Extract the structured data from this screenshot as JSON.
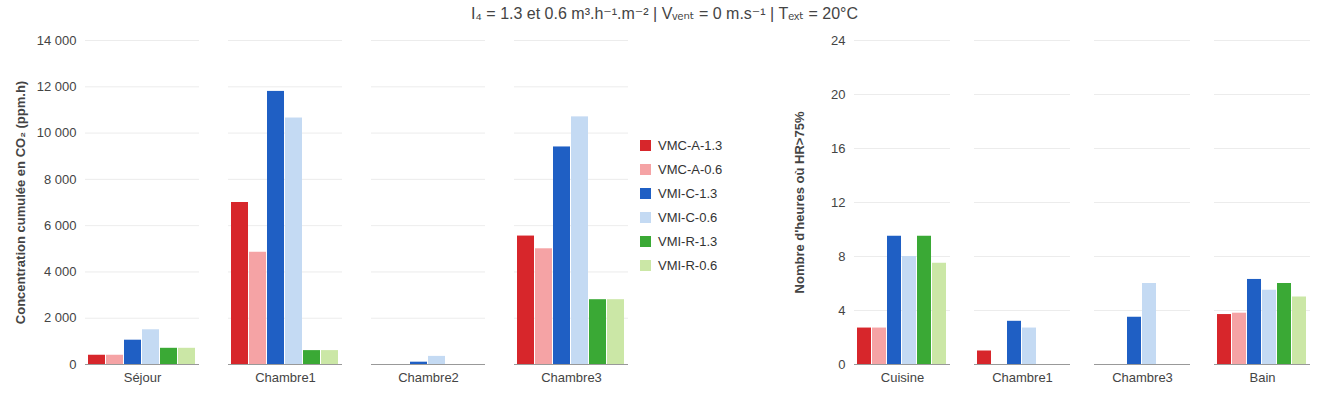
{
  "title": "I₄ = 1.3 et 0.6 m³.h⁻¹.m⁻² | Vᵥₑₙₜ = 0 m.s⁻¹ | Tₑₓₜ = 20°C",
  "chart_data": [
    {
      "type": "bar",
      "y_label": "Concentration cumulée en CO₂ (ppm.h)",
      "categories": [
        "Séjour",
        "Chambre1",
        "Chambre2",
        "Chambre3"
      ],
      "series": [
        {
          "name": "VMC-A-1.3",
          "color": "#d7262b",
          "values": [
            400,
            7000,
            0,
            5550
          ]
        },
        {
          "name": "VMC-A-0.6",
          "color": "#f5a3a5",
          "values": [
            400,
            4850,
            0,
            5000
          ]
        },
        {
          "name": "VMI-C-1.3",
          "color": "#1f5fc4",
          "values": [
            1050,
            11800,
            100,
            9400
          ]
        },
        {
          "name": "VMI-C-0.6",
          "color": "#c4daf3",
          "values": [
            1500,
            10650,
            350,
            10700
          ]
        },
        {
          "name": "VMI-R-1.3",
          "color": "#3aa935",
          "values": [
            700,
            600,
            0,
            2800
          ]
        },
        {
          "name": "VMI-R-0.6",
          "color": "#cbe7a6",
          "values": [
            700,
            600,
            0,
            2800
          ]
        }
      ],
      "ylim": [
        0,
        14000
      ],
      "yticks": [
        0,
        {
          "value": 2000,
          "label": "2 000"
        },
        {
          "value": 4000,
          "label": "4 000"
        },
        {
          "value": 6000,
          "label": "6 000"
        },
        {
          "value": 8000,
          "label": "8 000"
        },
        {
          "value": 10000,
          "label": "10 000"
        },
        {
          "value": 12000,
          "label": "12 000"
        },
        {
          "value": 14000,
          "label": "14 000"
        }
      ],
      "grid": true,
      "legend": "right"
    },
    {
      "type": "bar",
      "y_label": "Nombre d'heures où HR>75%",
      "categories": [
        "Cuisine",
        "Chambre1",
        "Chambre3",
        "Bain"
      ],
      "series": [
        {
          "name": "VMC-A-1.3",
          "color": "#d7262b",
          "values": [
            2.7,
            1,
            0,
            3.7
          ]
        },
        {
          "name": "VMC-A-0.6",
          "color": "#f5a3a5",
          "values": [
            2.7,
            0,
            0,
            3.8
          ]
        },
        {
          "name": "VMI-C-1.3",
          "color": "#1f5fc4",
          "values": [
            9.5,
            3.2,
            3.5,
            6.3
          ]
        },
        {
          "name": "VMI-C-0.6",
          "color": "#c4daf3",
          "values": [
            8,
            2.7,
            6,
            5.5
          ]
        },
        {
          "name": "VMI-R-1.3",
          "color": "#3aa935",
          "values": [
            9.5,
            0,
            0,
            6
          ]
        },
        {
          "name": "VMI-R-0.6",
          "color": "#cbe7a6",
          "values": [
            7.5,
            0,
            0,
            5
          ]
        }
      ],
      "ylim": [
        0,
        24
      ],
      "yticks": [
        0,
        4,
        8,
        12,
        16,
        20,
        24
      ],
      "grid": true
    }
  ]
}
